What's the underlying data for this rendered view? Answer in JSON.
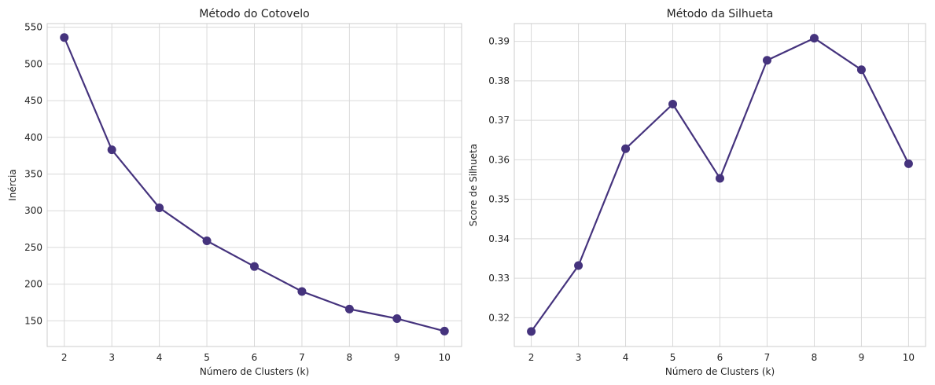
{
  "chart_data": [
    {
      "type": "line",
      "title": "Método do Cotovelo",
      "xlabel": "Número de Clusters (k)",
      "ylabel": "Inércia",
      "x": [
        2,
        3,
        4,
        5,
        6,
        7,
        8,
        9,
        10
      ],
      "xticks": [
        "2",
        "3",
        "4",
        "5",
        "6",
        "7",
        "8",
        "9",
        "10"
      ],
      "yticks": [
        "150",
        "200",
        "250",
        "300",
        "350",
        "400",
        "450",
        "500",
        "550"
      ],
      "ytick_values": [
        150,
        200,
        250,
        300,
        350,
        400,
        450,
        500,
        550
      ],
      "xlim": [
        1.64,
        10.36
      ],
      "ylim": [
        115,
        555
      ],
      "series": [
        {
          "values": [
            536,
            383,
            304,
            259,
            224,
            190,
            166,
            153,
            136
          ]
        }
      ],
      "color": "#45337d",
      "grid": true
    },
    {
      "type": "line",
      "title": "Método da Silhueta",
      "xlabel": "Número de Clusters (k)",
      "ylabel": "Score de Silhueta",
      "x": [
        2,
        3,
        4,
        5,
        6,
        7,
        8,
        9,
        10
      ],
      "xticks": [
        "2",
        "3",
        "4",
        "5",
        "6",
        "7",
        "8",
        "9",
        "10"
      ],
      "yticks": [
        "0.32",
        "0.33",
        "0.34",
        "0.35",
        "0.36",
        "0.37",
        "0.38",
        "0.39"
      ],
      "ytick_values": [
        0.32,
        0.33,
        0.34,
        0.35,
        0.36,
        0.37,
        0.38,
        0.39
      ],
      "xlim": [
        1.64,
        10.36
      ],
      "ylim": [
        0.3127,
        0.3945
      ],
      "series": [
        {
          "values": [
            0.3165,
            0.3332,
            0.3628,
            0.3741,
            0.3553,
            0.3852,
            0.3908,
            0.3828,
            0.359
          ]
        }
      ],
      "color": "#45337d",
      "grid": true
    }
  ]
}
